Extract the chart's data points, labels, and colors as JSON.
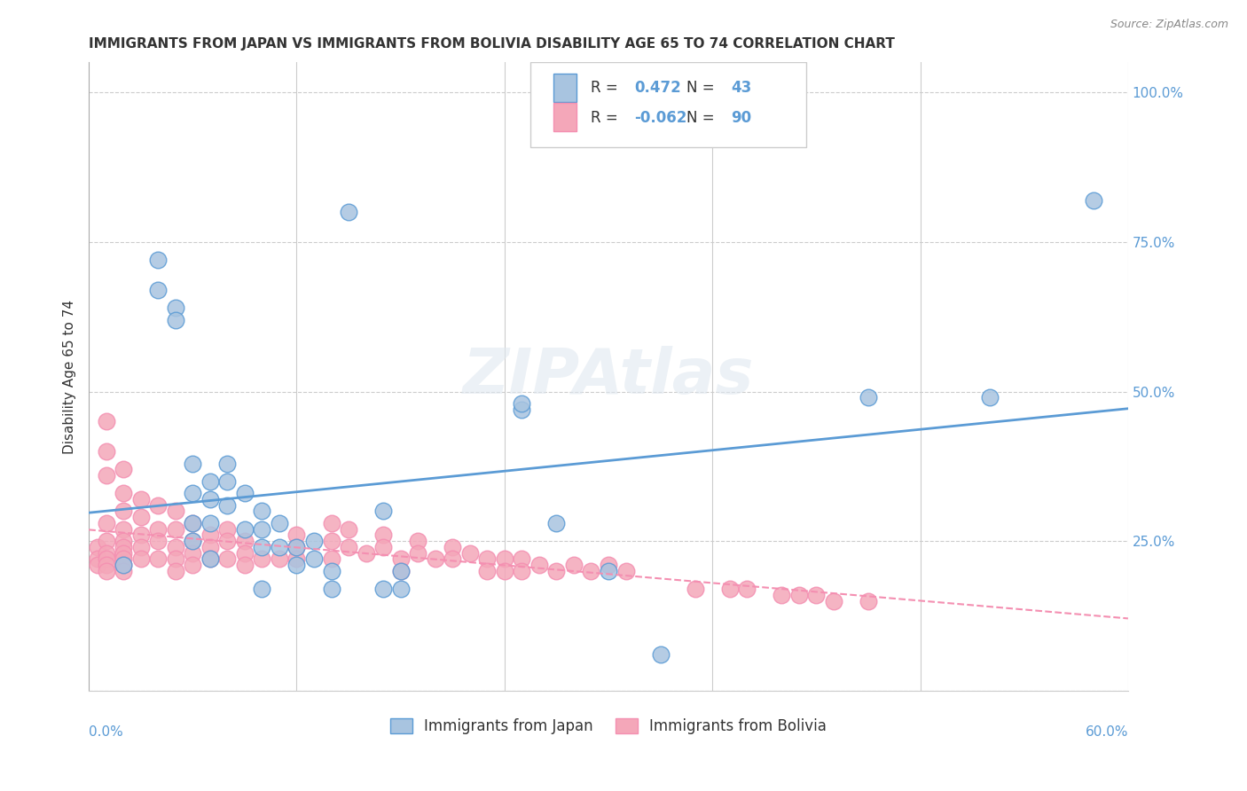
{
  "title": "IMMIGRANTS FROM JAPAN VS IMMIGRANTS FROM BOLIVIA DISABILITY AGE 65 TO 74 CORRELATION CHART",
  "source": "Source: ZipAtlas.com",
  "ylabel": "Disability Age 65 to 74",
  "ytick_labels": [
    "",
    "25.0%",
    "50.0%",
    "75.0%",
    "100.0%"
  ],
  "ytick_values": [
    0,
    0.25,
    0.5,
    0.75,
    1.0
  ],
  "xlim": [
    0.0,
    0.6
  ],
  "ylim": [
    0.0,
    1.05
  ],
  "legend_japan": "Immigrants from Japan",
  "legend_bolivia": "Immigrants from Bolivia",
  "R_japan": 0.472,
  "N_japan": 43,
  "R_bolivia": -0.062,
  "N_bolivia": 90,
  "color_japan": "#a8c4e0",
  "color_bolivia": "#f4a7b9",
  "line_japan": "#5b9bd5",
  "line_bolivia": "#f48fb1",
  "watermark": "ZIPAtlas",
  "japan_points_x": [
    0.02,
    0.04,
    0.04,
    0.05,
    0.05,
    0.06,
    0.06,
    0.06,
    0.06,
    0.07,
    0.07,
    0.07,
    0.07,
    0.08,
    0.08,
    0.08,
    0.09,
    0.09,
    0.1,
    0.1,
    0.1,
    0.1,
    0.11,
    0.11,
    0.12,
    0.12,
    0.13,
    0.13,
    0.14,
    0.14,
    0.15,
    0.17,
    0.17,
    0.18,
    0.18,
    0.25,
    0.25,
    0.27,
    0.3,
    0.33,
    0.45,
    0.52,
    0.58
  ],
  "japan_points_y": [
    0.21,
    0.72,
    0.67,
    0.64,
    0.62,
    0.38,
    0.33,
    0.28,
    0.25,
    0.35,
    0.32,
    0.28,
    0.22,
    0.38,
    0.35,
    0.31,
    0.33,
    0.27,
    0.3,
    0.27,
    0.24,
    0.17,
    0.28,
    0.24,
    0.24,
    0.21,
    0.25,
    0.22,
    0.2,
    0.17,
    0.8,
    0.3,
    0.17,
    0.2,
    0.17,
    0.47,
    0.48,
    0.28,
    0.2,
    0.06,
    0.49,
    0.49,
    0.82
  ],
  "bolivia_points_x": [
    0.005,
    0.005,
    0.005,
    0.01,
    0.01,
    0.01,
    0.01,
    0.01,
    0.01,
    0.01,
    0.01,
    0.01,
    0.02,
    0.02,
    0.02,
    0.02,
    0.02,
    0.02,
    0.02,
    0.02,
    0.02,
    0.02,
    0.03,
    0.03,
    0.03,
    0.03,
    0.03,
    0.04,
    0.04,
    0.04,
    0.04,
    0.05,
    0.05,
    0.05,
    0.05,
    0.05,
    0.06,
    0.06,
    0.06,
    0.06,
    0.07,
    0.07,
    0.07,
    0.08,
    0.08,
    0.08,
    0.09,
    0.09,
    0.09,
    0.1,
    0.11,
    0.12,
    0.12,
    0.12,
    0.14,
    0.14,
    0.14,
    0.15,
    0.15,
    0.16,
    0.17,
    0.17,
    0.18,
    0.18,
    0.19,
    0.19,
    0.2,
    0.21,
    0.21,
    0.22,
    0.23,
    0.23,
    0.24,
    0.24,
    0.25,
    0.25,
    0.26,
    0.27,
    0.28,
    0.29,
    0.3,
    0.31,
    0.35,
    0.37,
    0.38,
    0.4,
    0.41,
    0.42,
    0.43,
    0.45
  ],
  "bolivia_points_y": [
    0.24,
    0.22,
    0.21,
    0.45,
    0.4,
    0.36,
    0.28,
    0.25,
    0.23,
    0.22,
    0.21,
    0.2,
    0.37,
    0.33,
    0.3,
    0.27,
    0.25,
    0.24,
    0.23,
    0.22,
    0.21,
    0.2,
    0.32,
    0.29,
    0.26,
    0.24,
    0.22,
    0.31,
    0.27,
    0.25,
    0.22,
    0.3,
    0.27,
    0.24,
    0.22,
    0.2,
    0.28,
    0.25,
    0.23,
    0.21,
    0.26,
    0.24,
    0.22,
    0.27,
    0.25,
    0.22,
    0.25,
    0.23,
    0.21,
    0.22,
    0.22,
    0.26,
    0.24,
    0.22,
    0.28,
    0.25,
    0.22,
    0.27,
    0.24,
    0.23,
    0.26,
    0.24,
    0.22,
    0.2,
    0.25,
    0.23,
    0.22,
    0.24,
    0.22,
    0.23,
    0.22,
    0.2,
    0.22,
    0.2,
    0.22,
    0.2,
    0.21,
    0.2,
    0.21,
    0.2,
    0.21,
    0.2,
    0.17,
    0.17,
    0.17,
    0.16,
    0.16,
    0.16,
    0.15,
    0.15
  ]
}
